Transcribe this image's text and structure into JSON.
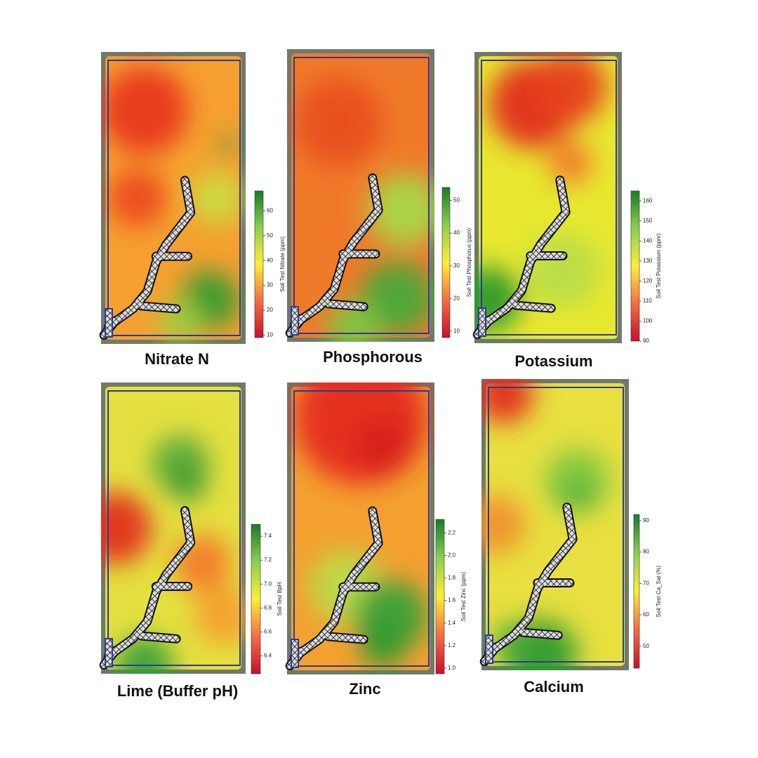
{
  "panels": [
    {
      "title": "Nitrate N",
      "colorbar": {
        "label": "Soil Test Nitrate (ppm)",
        "lim": [
          9,
          68
        ],
        "ticks": [
          10,
          20,
          30,
          40,
          50,
          60
        ]
      }
    },
    {
      "title": "Phosphorous",
      "colorbar": {
        "label": "Soil Test Phosphorus (ppm)",
        "lim": [
          8,
          54
        ],
        "ticks": [
          10,
          20,
          30,
          40,
          50
        ]
      }
    },
    {
      "title": "Potassium",
      "colorbar": {
        "label": "Soil Test Potassium (ppm)",
        "lim": [
          90,
          165
        ],
        "ticks": [
          90,
          100,
          110,
          120,
          130,
          140,
          150,
          160
        ]
      }
    },
    {
      "title": "Lime (Buffer pH)",
      "colorbar": {
        "label": "Soil Test BpH",
        "lim": [
          6.25,
          7.5
        ],
        "ticks": [
          6.4,
          6.6,
          6.8,
          {
            "value": 7,
            "label": "7.0"
          },
          7.2,
          7.4
        ]
      }
    },
    {
      "title": "Zinc",
      "colorbar": {
        "label": "Soil Test Zinc (ppm)",
        "lim": [
          0.95,
          2.32
        ],
        "ticks": [
          {
            "value": 1,
            "label": "1.0"
          },
          1.2,
          1.4,
          1.6,
          1.8,
          {
            "value": 2,
            "label": "2.0"
          },
          2.2
        ]
      }
    },
    {
      "title": "Calcium",
      "colorbar": {
        "label": "Soil Test Ca_Sat (%)",
        "lim": [
          43,
          92
        ],
        "ticks": [
          50,
          60,
          70,
          80,
          90
        ]
      }
    }
  ]
}
